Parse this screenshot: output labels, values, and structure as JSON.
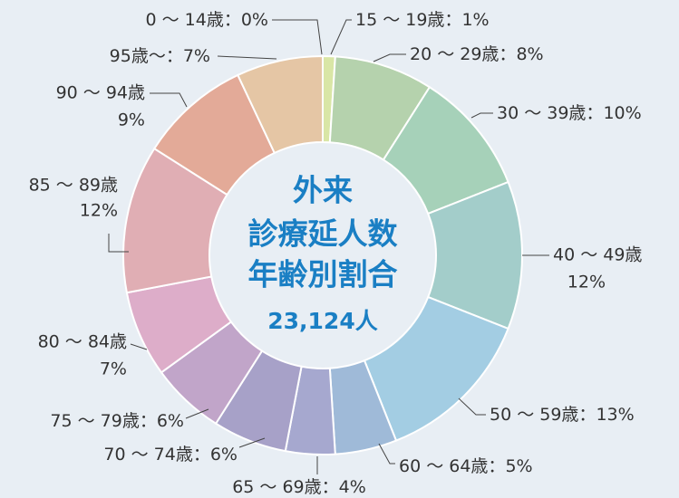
{
  "chart_data": {
    "type": "pie",
    "donut": true,
    "center_text": [
      "外来",
      "診療延人数",
      "年齢別割合",
      "23,124人"
    ],
    "categories": [
      "0 ～ 14歳：",
      "15 ～ 19歳：",
      "20 ～ 29歳：",
      "30 ～ 39歳：",
      "40 ～ 49歳",
      "50 ～ 59歳：",
      "60 ～ 64歳：",
      "65 ～ 69歳：",
      "70 ～ 74歳：",
      "75 ～ 79歳：",
      "80 ～ 84歳",
      "85 ～ 89歳",
      "90 ～ 94歳",
      "95歳～："
    ],
    "values": [
      0,
      1,
      8,
      10,
      12,
      13,
      5,
      4,
      6,
      6,
      7,
      12,
      9,
      7
    ],
    "value_labels": [
      "0%",
      "1%",
      "8%",
      "10%",
      "12%",
      "13%",
      "5%",
      "4%",
      "6%",
      "6%",
      "7%",
      "12%",
      "9%",
      "7%"
    ],
    "colors": [
      "#f1e3a0",
      "#d9e6a6",
      "#b5d2ad",
      "#a6d1b9",
      "#a3cdca",
      "#a3cde3",
      "#9fbad8",
      "#a6a8cf",
      "#a7a1c8",
      "#c1a5c9",
      "#ddadc9",
      "#e0aeb4",
      "#e3aa98",
      "#e5c6a5"
    ]
  }
}
